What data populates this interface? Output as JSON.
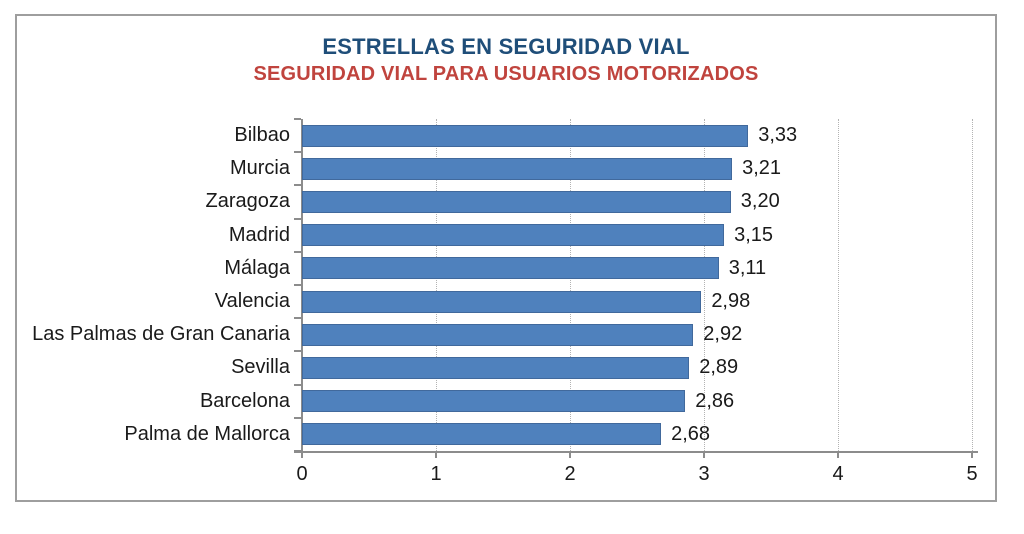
{
  "chart_data": {
    "type": "bar",
    "orientation": "horizontal",
    "title": "ESTRELLAS EN SEGURIDAD VIAL",
    "subtitle": "SEGURIDAD VIAL PARA USUARIOS MOTORIZADOS",
    "categories": [
      "Bilbao",
      "Murcia",
      "Zaragoza",
      "Madrid",
      "Málaga",
      "Valencia",
      "Las Palmas de Gran Canaria",
      "Sevilla",
      "Barcelona",
      "Palma de Mallorca"
    ],
    "values": [
      3.33,
      3.21,
      3.2,
      3.15,
      3.11,
      2.98,
      2.92,
      2.89,
      2.86,
      2.68
    ],
    "value_labels": [
      "3,33",
      "3,21",
      "3,20",
      "3,15",
      "3,11",
      "2,98",
      "2,92",
      "2,89",
      "2,86",
      "2,68"
    ],
    "xlabel": "",
    "ylabel": "",
    "xlim": [
      0,
      5
    ],
    "x_tick_labels": [
      "0",
      "1",
      "2",
      "3",
      "4",
      "5"
    ],
    "grid": "vertical-dotted",
    "legend": "none",
    "colors": {
      "bar_fill": "#4f81bd",
      "bar_border": "#41699c",
      "title": "#1f4e79",
      "subtitle": "#c0443e",
      "axis": "#8c8c8c",
      "gridline": "#b3b3b3",
      "text": "#1a1a1a"
    }
  }
}
